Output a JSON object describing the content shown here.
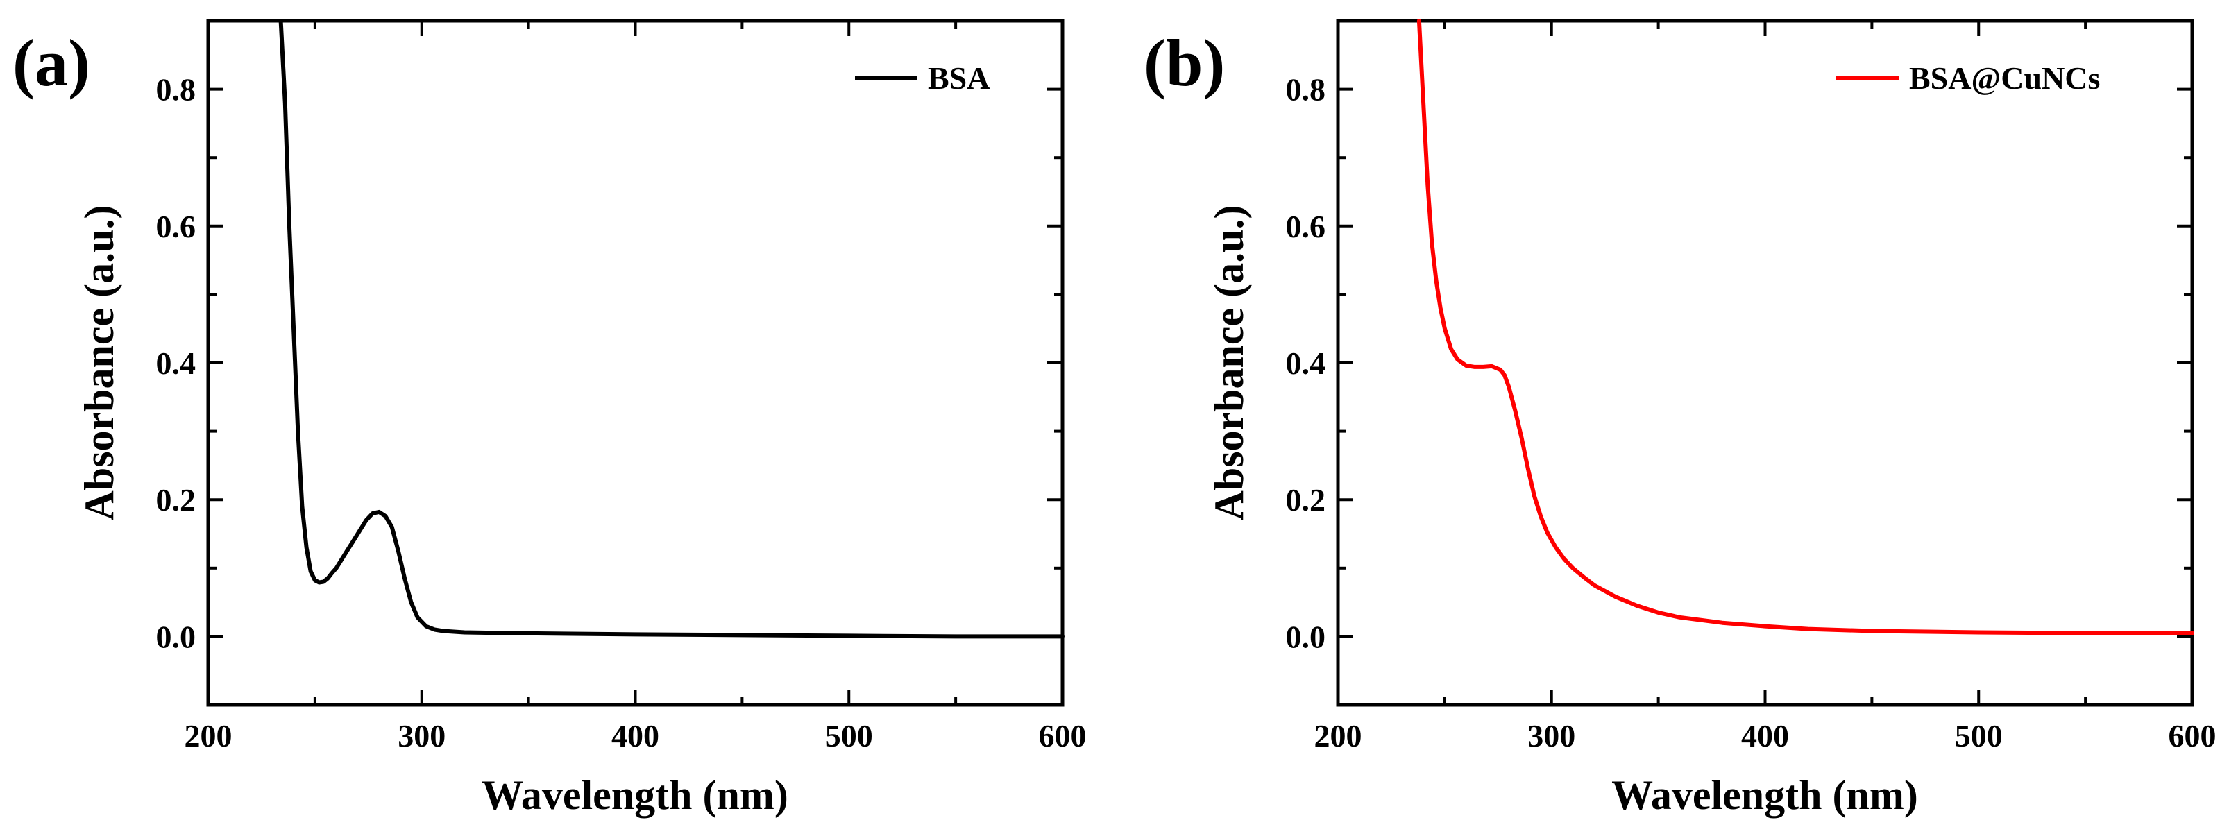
{
  "chart_data": [
    {
      "type": "line",
      "panel_label": "(a)",
      "xlabel": "Wavelength (nm)",
      "ylabel": "Absorbance (a.u.)",
      "xlim": [
        200,
        600
      ],
      "ylim": [
        -0.1,
        0.9
      ],
      "xticks": [
        200,
        300,
        400,
        500,
        600
      ],
      "xtick_labels": [
        "200",
        "300",
        "400",
        "500",
        "600"
      ],
      "yticks": [
        0.0,
        0.2,
        0.4,
        0.6,
        0.8
      ],
      "ytick_labels": [
        "0.0",
        "0.2",
        "0.4",
        "0.6",
        "0.8"
      ],
      "legend_position": "top-right",
      "series": [
        {
          "name": "BSA",
          "color": "#000000",
          "x": [
            234,
            236,
            238,
            240,
            242,
            244,
            246,
            248,
            250,
            252,
            254,
            256,
            258,
            260,
            262,
            265,
            268,
            271,
            274,
            277,
            280,
            283,
            286,
            289,
            292,
            295,
            298,
            302,
            306,
            310,
            320,
            340,
            370,
            400,
            450,
            500,
            550,
            600
          ],
          "y": [
            0.9,
            0.78,
            0.6,
            0.45,
            0.3,
            0.19,
            0.13,
            0.095,
            0.082,
            0.079,
            0.08,
            0.085,
            0.093,
            0.1,
            0.11,
            0.125,
            0.14,
            0.155,
            0.17,
            0.18,
            0.182,
            0.176,
            0.16,
            0.125,
            0.085,
            0.05,
            0.028,
            0.015,
            0.01,
            0.008,
            0.006,
            0.005,
            0.004,
            0.003,
            0.002,
            0.001,
            0.0,
            0.0
          ]
        }
      ]
    },
    {
      "type": "line",
      "panel_label": "(b)",
      "xlabel": "Wavelength (nm)",
      "ylabel": "Absorbance (a.u.)",
      "xlim": [
        200,
        600
      ],
      "ylim": [
        -0.1,
        0.9
      ],
      "xticks": [
        200,
        300,
        400,
        500,
        600
      ],
      "xtick_labels": [
        "200",
        "300",
        "400",
        "500",
        "600"
      ],
      "yticks": [
        0.0,
        0.2,
        0.4,
        0.6,
        0.8
      ],
      "ytick_labels": [
        "0.0",
        "0.2",
        "0.4",
        "0.6",
        "0.8"
      ],
      "legend_position": "top-right",
      "series": [
        {
          "name": "BSA@CuNCs",
          "color": "#ff0000",
          "x": [
            238,
            240,
            242,
            244,
            246,
            248,
            250,
            253,
            256,
            260,
            264,
            268,
            272,
            276,
            278,
            280,
            283,
            286,
            289,
            292,
            295,
            298,
            302,
            306,
            310,
            315,
            320,
            330,
            340,
            350,
            360,
            380,
            400,
            420,
            450,
            500,
            550,
            600
          ],
          "y": [
            0.9,
            0.78,
            0.66,
            0.575,
            0.52,
            0.48,
            0.45,
            0.42,
            0.405,
            0.396,
            0.394,
            0.394,
            0.395,
            0.39,
            0.382,
            0.365,
            0.33,
            0.29,
            0.245,
            0.205,
            0.175,
            0.152,
            0.13,
            0.113,
            0.1,
            0.087,
            0.075,
            0.058,
            0.045,
            0.035,
            0.028,
            0.02,
            0.015,
            0.011,
            0.008,
            0.006,
            0.005,
            0.005
          ]
        }
      ]
    }
  ]
}
